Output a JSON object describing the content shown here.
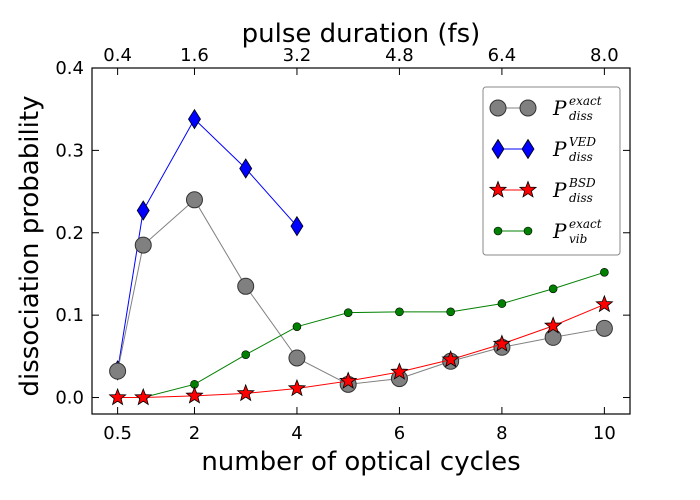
{
  "chart_data": {
    "type": "line",
    "xlabel": "number of optical cycles",
    "ylabel": "dissociation probability",
    "top_xlabel": "pulse duration (fs)",
    "xlim": [
      0,
      10.5
    ],
    "ylim": [
      -0.02,
      0.4
    ],
    "x_ticks": [
      0.5,
      2,
      4,
      6,
      8,
      10
    ],
    "x_tick_labels": [
      "0.5",
      "2",
      "4",
      "6",
      "8",
      "10"
    ],
    "y_ticks": [
      0.0,
      0.1,
      0.2,
      0.3,
      0.4
    ],
    "y_tick_labels": [
      "0.0",
      "0.1",
      "0.2",
      "0.3",
      "0.4"
    ],
    "top_ticks": [
      0.5,
      2,
      4,
      6,
      8,
      10
    ],
    "top_tick_labels": [
      "0.4",
      "1.6",
      "3.2",
      "4.8",
      "6.4",
      "8.0"
    ],
    "legend_position": "upper-right",
    "series": [
      {
        "name": "P_diss^exact",
        "legend_main": "P",
        "legend_sup": "exact",
        "legend_sub": "diss",
        "marker": "circle",
        "color": "#808080",
        "line_color": "#808080",
        "x": [
          0.5,
          1,
          2,
          3,
          4,
          5,
          6,
          7,
          8,
          9,
          10
        ],
        "values": [
          0.032,
          0.185,
          0.24,
          0.135,
          0.048,
          0.016,
          0.023,
          0.044,
          0.061,
          0.073,
          0.084
        ]
      },
      {
        "name": "P_diss^VED",
        "legend_main": "P",
        "legend_sup": "VED",
        "legend_sub": "diss",
        "marker": "diamond",
        "color": "#0000ff",
        "line_color": "#0000ff",
        "x": [
          0.5,
          1,
          2,
          3,
          4
        ],
        "values": [
          0.033,
          0.227,
          0.338,
          0.278,
          0.208
        ]
      },
      {
        "name": "P_diss^BSD",
        "legend_main": "P",
        "legend_sup": "BSD",
        "legend_sub": "diss",
        "marker": "star",
        "color": "#ff0000",
        "line_color": "#ff0000",
        "x": [
          0.5,
          1,
          2,
          3,
          4,
          5,
          6,
          7,
          8,
          9,
          10
        ],
        "values": [
          0.0,
          0.0,
          0.002,
          0.005,
          0.011,
          0.02,
          0.031,
          0.046,
          0.065,
          0.087,
          0.113
        ]
      },
      {
        "name": "P_vib^exact",
        "legend_main": "P",
        "legend_sup": "exact",
        "legend_sub": "vib",
        "marker": "dot",
        "color": "#008000",
        "line_color": "#008000",
        "x": [
          0.5,
          1,
          2,
          3,
          4,
          5,
          6,
          7,
          8,
          9,
          10
        ],
        "values": [
          0.0,
          0.0,
          0.016,
          0.052,
          0.086,
          0.103,
          0.104,
          0.104,
          0.114,
          0.132,
          0.152
        ]
      }
    ]
  }
}
